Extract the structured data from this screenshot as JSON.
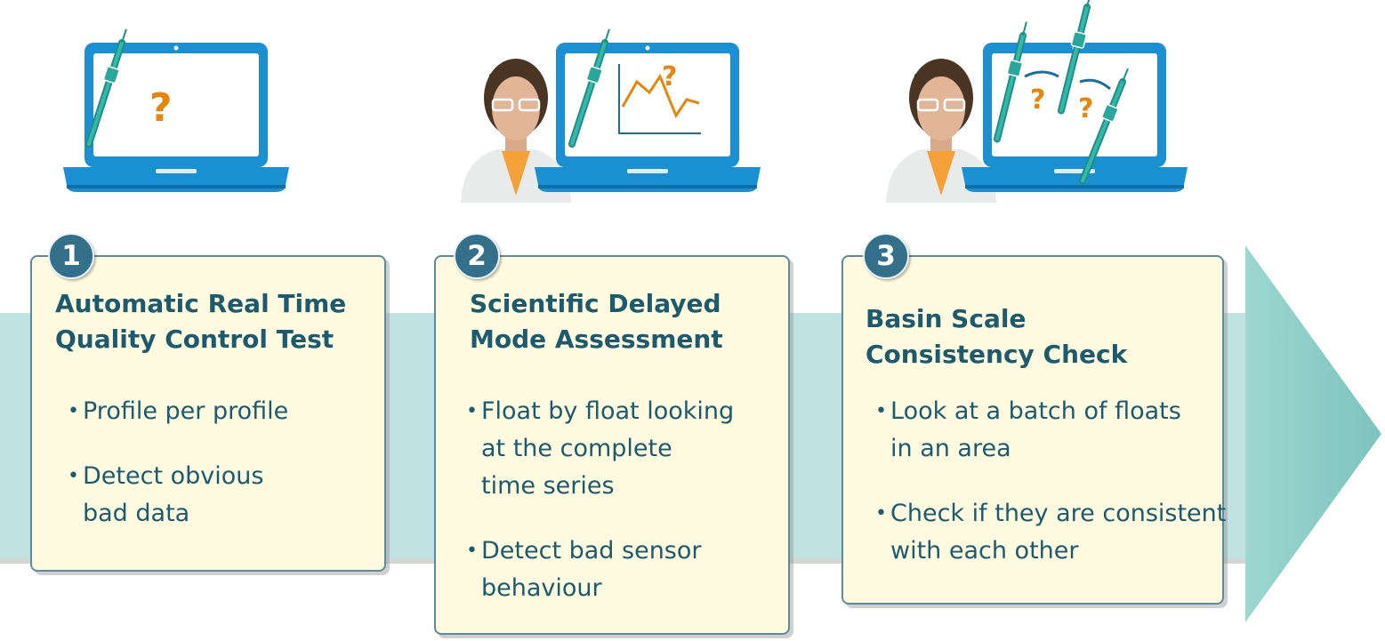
{
  "steps": [
    {
      "number": "1",
      "title_lines": [
        "Automatic Real Time",
        "Quality Control Test"
      ],
      "bullets": [
        {
          "lines": [
            "Profile per profile"
          ]
        },
        {
          "lines": [
            "Detect obvious",
            "bad data"
          ]
        }
      ]
    },
    {
      "number": "2",
      "title_lines": [
        "Scientific Delayed",
        "Mode Assessment"
      ],
      "bullets": [
        {
          "lines": [
            "Float by float looking",
            "at the complete",
            "time series"
          ]
        },
        {
          "lines": [
            "Detect bad sensor",
            "behaviour"
          ]
        }
      ]
    },
    {
      "number": "3",
      "title_lines": [
        "Basin Scale",
        "Consistency Check"
      ],
      "bullets": [
        {
          "lines": [
            "Look at a batch of floats",
            "in an area"
          ]
        },
        {
          "lines": [
            "Check if they are consistent",
            "with each other"
          ]
        }
      ]
    }
  ],
  "illustrations": {
    "question_mark": "?",
    "icons": [
      "laptop-icon",
      "float-sensor-icon",
      "question-mark-icon",
      "scientist-icon",
      "line-chart-icon",
      "swap-arrows-icon"
    ]
  },
  "colors": {
    "card_bg": "#fdfae0",
    "card_border": "#5e8a9a",
    "heading": "#1d5a6c",
    "badge": "#35708a",
    "arrow_band": "#bfe1e2",
    "arrow_head": "#8fcfc8",
    "laptop_blue": "#1a8fd1",
    "sensor_teal": "#2aa79b",
    "question_orange": "#e8860c"
  }
}
